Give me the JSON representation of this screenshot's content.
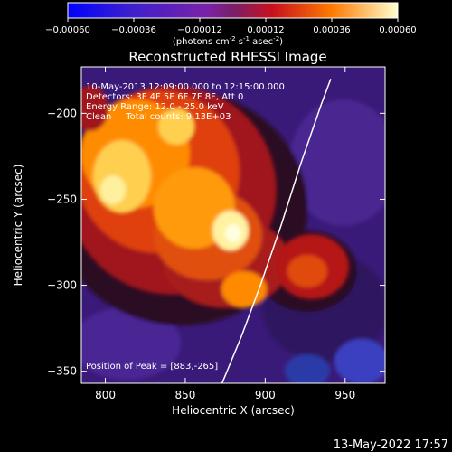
{
  "colorbar": {
    "ticks": [
      "-0.00060",
      "-0.00036",
      "-0.00012",
      "0.00012",
      "0.00036",
      "0.00060"
    ],
    "unit_label": "(photons cm",
    "unit_sup1": "-2",
    "unit_mid": " s",
    "unit_sup2": "-1",
    "unit_mid2": " asec",
    "unit_sup3": "-2",
    "unit_end": ")"
  },
  "chart_data": {
    "type": "heatmap",
    "title": "Reconstructed RHESSI Image",
    "xlabel": "Heliocentric X (arcsec)",
    "ylabel": "Heliocentric Y (arcsec)",
    "xlim": [
      785,
      975
    ],
    "ylim": [
      -357,
      -173
    ],
    "xticks": [
      800,
      850,
      900,
      950
    ],
    "yticks": [
      -200,
      -250,
      -300,
      -350
    ],
    "color_range": [
      -0.0006,
      0.0006
    ],
    "peak": [
      883,
      -265
    ],
    "annotations": [
      "10-May-2013 12:09:00.000 to 12:15:00.000",
      "Detectors: 3F 4F 5F 6F 7F 8F, Att 0",
      "Energy Range: 12.0 - 25.0 keV",
      "Clean     Total counts: 9.13E+03"
    ],
    "peak_label": "Position of Peak = [883,-265]",
    "limb_curve": [
      [
        873,
        -357
      ],
      [
        885,
        -330
      ],
      [
        897,
        -300
      ],
      [
        910,
        -265
      ],
      [
        922,
        -230
      ],
      [
        935,
        -195
      ],
      [
        941,
        -180
      ]
    ]
  },
  "footer": {
    "timestamp": "13-May-2022 17:57"
  }
}
